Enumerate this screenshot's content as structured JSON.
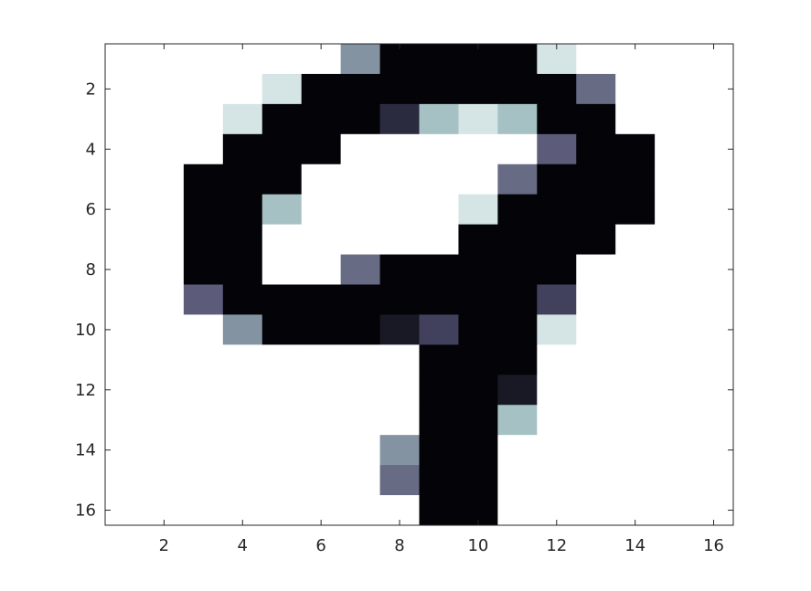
{
  "chart_data": {
    "type": "heatmap",
    "title": "",
    "xlabel": "",
    "ylabel": "",
    "xlim": [
      0.5,
      16.5
    ],
    "ylim": [
      0.5,
      16.5
    ],
    "y_reversed": true,
    "grid": false,
    "colormap": "bone",
    "x_ticks": [
      2,
      4,
      6,
      8,
      10,
      12,
      14,
      16
    ],
    "y_ticks": [
      2,
      4,
      6,
      8,
      10,
      12,
      14,
      16
    ],
    "x_tick_labels": [
      "2",
      "4",
      "6",
      "8",
      "10",
      "12",
      "14",
      "16"
    ],
    "y_tick_labels": [
      "2",
      "4",
      "6",
      "8",
      "10",
      "12",
      "14",
      "16"
    ],
    "values": [
      [
        0,
        0,
        0,
        0,
        0,
        0,
        0.42,
        1,
        1,
        1,
        1,
        0.12,
        0,
        0,
        0,
        0
      ],
      [
        0,
        0,
        0,
        0,
        0.12,
        1,
        1,
        1,
        1,
        1,
        1,
        1,
        0.55,
        0,
        0,
        0
      ],
      [
        0,
        0,
        0,
        0.12,
        1,
        1,
        1,
        0.82,
        0.27,
        0.12,
        0.27,
        1,
        1,
        0,
        0,
        0
      ],
      [
        0,
        0,
        0,
        1,
        1,
        1,
        0,
        0,
        0,
        0,
        0,
        0.6,
        1,
        1,
        0,
        0
      ],
      [
        0,
        0,
        1,
        1,
        1,
        0,
        0,
        0,
        0,
        0,
        0.55,
        1,
        1,
        1,
        0,
        0
      ],
      [
        0,
        0,
        1,
        1,
        0.27,
        0,
        0,
        0,
        0,
        0.12,
        1,
        1,
        1,
        1,
        0,
        0
      ],
      [
        0,
        0,
        1,
        1,
        0,
        0,
        0,
        0,
        0,
        1,
        1,
        1,
        1,
        0,
        0,
        0
      ],
      [
        0,
        0,
        1,
        1,
        0,
        0,
        0.55,
        1,
        1,
        1,
        1,
        1,
        0,
        0,
        0,
        0
      ],
      [
        0,
        0,
        0.6,
        1,
        1,
        1,
        1,
        1,
        1,
        1,
        1,
        0.72,
        0,
        0,
        0,
        0
      ],
      [
        0,
        0,
        0,
        0.42,
        1,
        1,
        1,
        0.9,
        0.72,
        1,
        1,
        0.12,
        0,
        0,
        0,
        0
      ],
      [
        0,
        0,
        0,
        0,
        0,
        0,
        0,
        0,
        1,
        1,
        1,
        0,
        0,
        0,
        0,
        0
      ],
      [
        0,
        0,
        0,
        0,
        0,
        0,
        0,
        0,
        1,
        1,
        0.9,
        0,
        0,
        0,
        0,
        0
      ],
      [
        0,
        0,
        0,
        0,
        0,
        0,
        0,
        0,
        1,
        1,
        0.27,
        0,
        0,
        0,
        0,
        0
      ],
      [
        0,
        0,
        0,
        0,
        0,
        0,
        0,
        0.42,
        1,
        1,
        0,
        0,
        0,
        0,
        0,
        0
      ],
      [
        0,
        0,
        0,
        0,
        0,
        0,
        0,
        0.55,
        1,
        1,
        0,
        0,
        0,
        0,
        0,
        0
      ],
      [
        0,
        0,
        0,
        0,
        0,
        0,
        0,
        0,
        1,
        1,
        0,
        0,
        0,
        0,
        0,
        0
      ]
    ]
  }
}
